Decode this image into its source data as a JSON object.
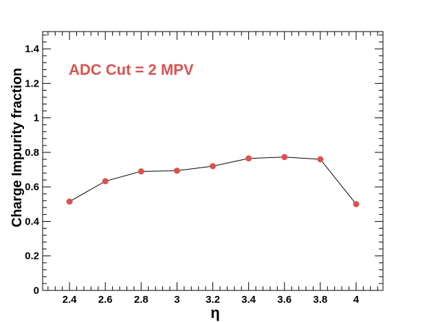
{
  "chart_data": {
    "type": "line",
    "title": "",
    "xlabel": "η",
    "ylabel": "Charge Impurity fraction",
    "xlim": [
      2.25,
      4.15
    ],
    "ylim": [
      0,
      1.5
    ],
    "x_major_ticks": [
      2.4,
      2.6,
      2.8,
      3,
      3.2,
      3.4,
      3.6,
      3.8,
      4
    ],
    "x_tick_labels": [
      "2.4",
      "2.6",
      "2.8",
      "3",
      "3.2",
      "3.4",
      "3.6",
      "3.8",
      "4"
    ],
    "y_major_ticks": [
      0,
      0.2,
      0.4,
      0.6,
      0.8,
      1,
      1.2,
      1.4
    ],
    "y_tick_labels": [
      "0",
      "0.2",
      "0.4",
      "0.6",
      "0.8",
      "1",
      "1.2",
      "1.4"
    ],
    "grid": false,
    "annotation": "ADC Cut = 2 MPV",
    "series": [
      {
        "x": [
          2.4,
          2.6,
          2.8,
          3.0,
          3.2,
          3.4,
          3.6,
          3.8,
          4.0
        ],
        "y": [
          0.515,
          0.633,
          0.69,
          0.694,
          0.72,
          0.765,
          0.773,
          0.76,
          0.5
        ],
        "marker_color": "#d9534f",
        "line_color": "#000000"
      }
    ]
  }
}
